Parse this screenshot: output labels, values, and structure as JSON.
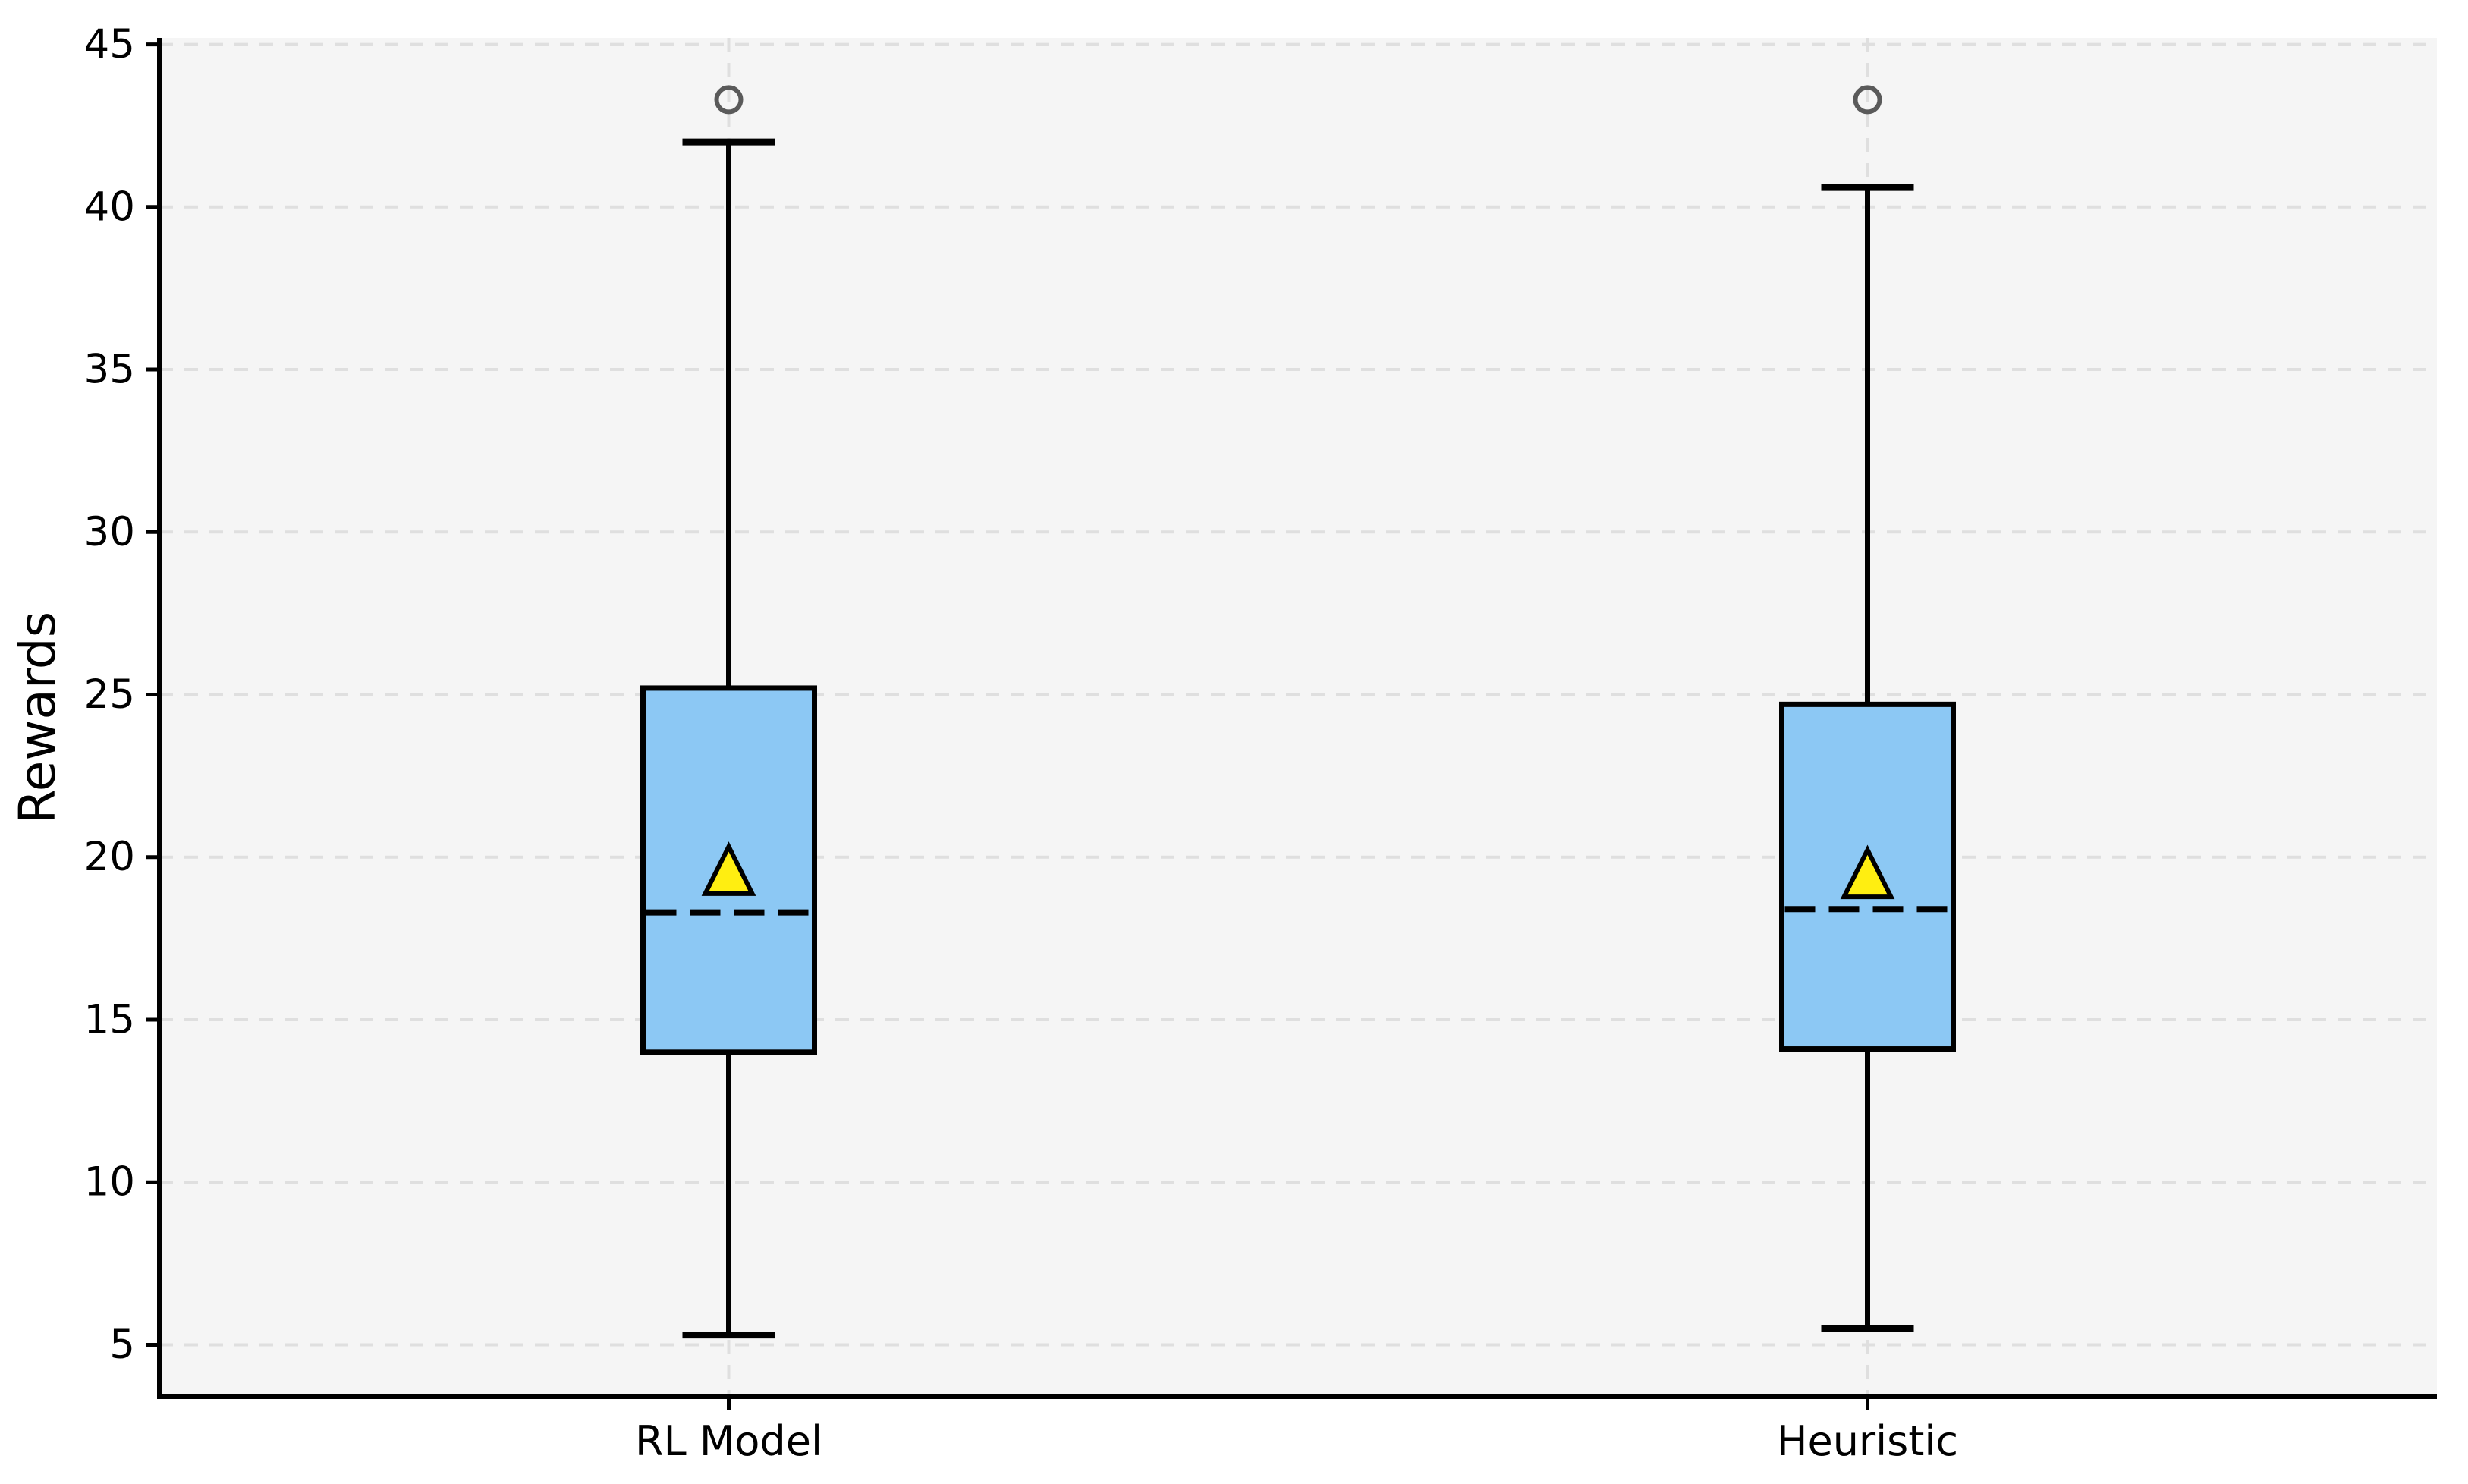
{
  "chart_data": {
    "type": "boxplot",
    "title": "",
    "xlabel": "",
    "ylabel": "Rewards",
    "categories": [
      "RL Model",
      "Heuristic"
    ],
    "y_ticks": [
      5,
      10,
      15,
      20,
      25,
      30,
      35,
      40,
      45
    ],
    "ylim": [
      3.4,
      45.2
    ],
    "grid": {
      "horizontal": true,
      "vertical": true,
      "style": "dashed"
    },
    "legend": "none",
    "series": [
      {
        "name": "RL Model",
        "whisker_low": 5.3,
        "q1": 14.0,
        "median": 18.3,
        "q3": 25.2,
        "whisker_high": 42.0,
        "mean": 19.6,
        "outliers": [
          43.3
        ]
      },
      {
        "name": "Heuristic",
        "whisker_low": 5.5,
        "q1": 14.1,
        "median": 18.4,
        "q3": 24.7,
        "whisker_high": 40.6,
        "mean": 19.5,
        "outliers": [
          43.3
        ]
      }
    ],
    "colors": {
      "box_fill": "#8CC8F4",
      "box_edge": "#000000",
      "median_line": "#000000",
      "mean_fill": "#FFEE11",
      "mean_edge": "#000000",
      "outlier_edge": "#5A5A5A",
      "grid_line": "#DFDFDF",
      "plot_background": "#F5F5F5",
      "figure_background": "#FFFFFF",
      "spine": "#000000",
      "tick_label": "#000000"
    }
  }
}
